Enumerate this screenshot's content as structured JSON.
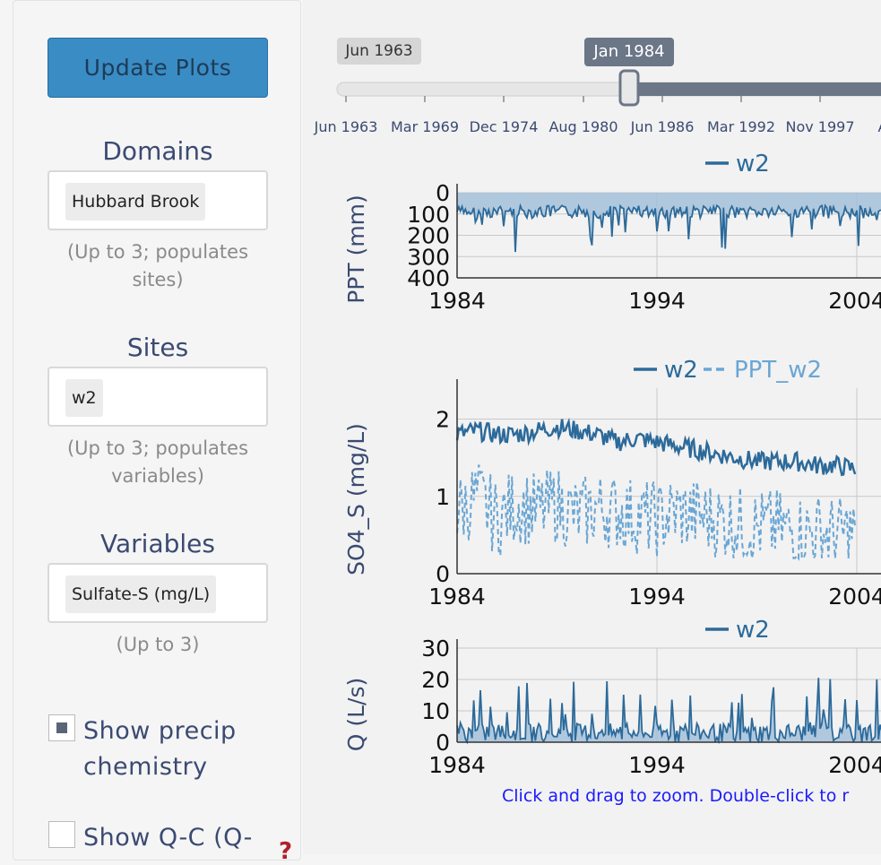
{
  "sidebar": {
    "update_button": "Update Plots",
    "domains": {
      "label": "Domains",
      "chip": "Hubbard Brook",
      "help": "(Up to 3; populates sites)"
    },
    "sites": {
      "label": "Sites",
      "chip": "w2",
      "help": "(Up to 3; populates variables)"
    },
    "variables": {
      "label": "Variables",
      "chip": "Sulfate-S (mg/L)",
      "help": "(Up to 3)"
    },
    "precip_checkbox": {
      "label": "Show precip chemistry",
      "checked": true
    },
    "qc_checkbox": {
      "label": "Show Q-C (Q-",
      "checked": false
    },
    "help_mark": "?"
  },
  "slider": {
    "min_label": "Jun 1963",
    "current_label": "Jan 1984",
    "current_fraction": 0.53,
    "ticks": [
      "Jun 1963",
      "Mar 1969",
      "Dec 1974",
      "Aug 1980",
      "Jun 1986",
      "Mar 1992",
      "Nov 1997",
      "Au"
    ]
  },
  "zoom_hint": "Click and drag to zoom. Double-click to r",
  "colors": {
    "series_dark": "#2c6a9a",
    "series_light": "#6aa6d4",
    "fill": "#9fbdd8",
    "axis_label": "#3b4a72",
    "hint": "#1a1aff"
  },
  "chart_data": [
    {
      "type": "area",
      "ylabel": "PPT (mm)",
      "y_ticks": [
        "0",
        "100",
        "200",
        "300",
        "400"
      ],
      "ylim": [
        400,
        0
      ],
      "y_inverted": true,
      "x_ticks": [
        "1984",
        "1994",
        "2004"
      ],
      "xlim": [
        1984,
        2004
      ],
      "series": [
        {
          "name": "w2",
          "style": "solid"
        }
      ]
    },
    {
      "type": "line",
      "ylabel": "SO4_S (mg/L)",
      "y_ticks": [
        "0",
        "1",
        "2"
      ],
      "ylim": [
        0,
        2.4
      ],
      "x_ticks": [
        "1984",
        "1994",
        "2004"
      ],
      "xlim": [
        1984,
        2004
      ],
      "series": [
        {
          "name": "w2",
          "style": "solid",
          "x": [
            1984,
            1985,
            1986,
            1987,
            1988,
            1989,
            1990,
            1991,
            1992,
            1993,
            1994,
            1995,
            1996,
            1997,
            1998,
            1999,
            2000,
            2001,
            2002,
            2003,
            2004
          ],
          "values": [
            1.8,
            1.85,
            1.8,
            1.8,
            1.85,
            1.9,
            1.85,
            1.8,
            1.7,
            1.75,
            1.7,
            1.65,
            1.6,
            1.55,
            1.5,
            1.45,
            1.45,
            1.45,
            1.4,
            1.4,
            1.35
          ]
        },
        {
          "name": "PPT_w2",
          "style": "dashed",
          "x": [
            1984,
            1985,
            1986,
            1987,
            1988,
            1989,
            1990,
            1991,
            1992,
            1993,
            1994,
            1995,
            1996,
            1997,
            1998,
            1999,
            2000,
            2001,
            2002,
            2003,
            2004
          ],
          "values": [
            0.8,
            1.0,
            0.7,
            0.9,
            0.8,
            0.9,
            0.75,
            0.85,
            0.8,
            0.75,
            0.7,
            0.8,
            0.75,
            0.7,
            0.65,
            0.6,
            0.6,
            0.55,
            0.55,
            0.5,
            0.55
          ]
        }
      ]
    },
    {
      "type": "area",
      "ylabel": "Q (L/s)",
      "y_ticks": [
        "0",
        "10",
        "20",
        "30"
      ],
      "ylim": [
        0,
        30
      ],
      "x_ticks": [
        "1984",
        "1994",
        "2004"
      ],
      "xlim": [
        1984,
        2004
      ],
      "series": [
        {
          "name": "w2",
          "style": "solid"
        }
      ]
    }
  ]
}
